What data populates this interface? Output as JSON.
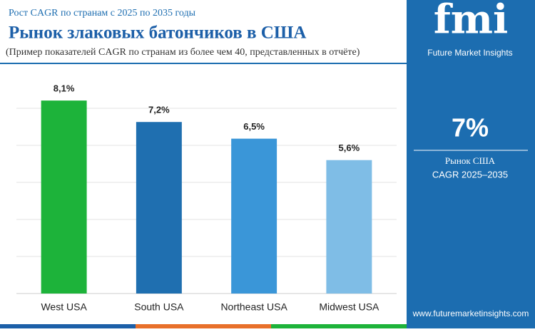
{
  "chart_data": {
    "type": "bar",
    "subtitle": "Рост CAGR по странам с 2025 по 2035 годы",
    "title": "Рынок злаковых батончиков в США",
    "note": "(Пример показателей CAGR по странам из более чем 40, представленных в отчёте)",
    "categories": [
      "West USA",
      "South USA",
      "Northeast USA",
      "Midwest USA"
    ],
    "values": [
      8.1,
      7.2,
      6.5,
      5.6
    ],
    "value_labels": [
      "8,1%",
      "7,2%",
      "6,5%",
      "5,6%"
    ],
    "colors": [
      "#1db33a",
      "#1f6fb0",
      "#3a96d8",
      "#7fbde6"
    ],
    "ylim": [
      0,
      9.3
    ],
    "grid": true
  },
  "side_panel": {
    "logo": "fmi",
    "brand": "Future Market Insights",
    "headline_value": "7%",
    "caption_line1": "Рынок США",
    "caption_line2": "CAGR 2025–2035",
    "url": "www.futuremarketinsights.com"
  }
}
